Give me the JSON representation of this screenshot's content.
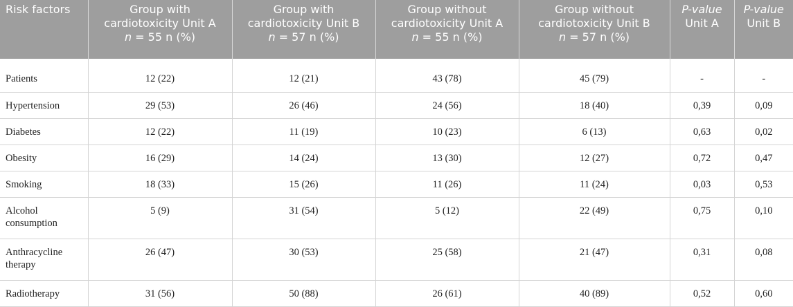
{
  "table": {
    "header": [
      {
        "lines": [
          [
            {
              "text": "Risk factors",
              "italic": false
            }
          ]
        ]
      },
      {
        "lines": [
          [
            {
              "text": "Group with cardiotoxicity Unit A",
              "italic": false
            }
          ],
          [
            {
              "text": "n",
              "italic": true
            },
            {
              "text": " = 55 n (%)",
              "italic": false
            }
          ]
        ]
      },
      {
        "lines": [
          [
            {
              "text": "Group with cardiotoxicity Unit B",
              "italic": false
            }
          ],
          [
            {
              "text": "n",
              "italic": true
            },
            {
              "text": " = 57 n (%)",
              "italic": false
            }
          ]
        ]
      },
      {
        "lines": [
          [
            {
              "text": "Group without cardiotoxicity Unit A",
              "italic": false
            }
          ],
          [
            {
              "text": "n",
              "italic": true
            },
            {
              "text": " = 55 n (%)",
              "italic": false
            }
          ]
        ]
      },
      {
        "lines": [
          [
            {
              "text": "Group without cardiotoxicity Unit B",
              "italic": false
            }
          ],
          [
            {
              "text": "n",
              "italic": true
            },
            {
              "text": " = 57 n (%)",
              "italic": false
            }
          ]
        ]
      },
      {
        "lines": [
          [
            {
              "text": "P-value",
              "italic": true
            }
          ],
          [
            {
              "text": "Unit A",
              "italic": false
            }
          ]
        ]
      },
      {
        "lines": [
          [
            {
              "text": "P-value",
              "italic": true
            }
          ],
          [
            {
              "text": "Unit B",
              "italic": false
            }
          ]
        ]
      }
    ],
    "rows": [
      [
        "Patients",
        "12 (22)",
        "12 (21)",
        "43 (78)",
        "45 (79)",
        "-",
        "-"
      ],
      [
        "Hypertension",
        "29 (53)",
        "26 (46)",
        "24 (56)",
        "18 (40)",
        "0,39",
        "0,09"
      ],
      [
        "Diabetes",
        "12 (22)",
        "11 (19)",
        "10 (23)",
        "6 (13)",
        "0,63",
        "0,02"
      ],
      [
        "Obesity",
        "16 (29)",
        "14 (24)",
        "13 (30)",
        "12 (27)",
        "0,72",
        "0,47"
      ],
      [
        "Smoking",
        "18 (33)",
        "15 (26)",
        "11 (26)",
        "11 (24)",
        "0,03",
        "0,53"
      ],
      [
        "Alcohol consumption",
        "5 (9)",
        "31 (54)",
        "5 (12)",
        "22 (49)",
        "0,75",
        "0,10"
      ],
      [
        "Anthracycline therapy",
        "26 (47)",
        "30 (53)",
        "25 (58)",
        "21 (47)",
        "0,31",
        "0,08"
      ],
      [
        "Radiotherapy",
        "31 (56)",
        "50 (88)",
        "26 (61)",
        "40 (89)",
        "0,52",
        "0,60"
      ]
    ]
  }
}
